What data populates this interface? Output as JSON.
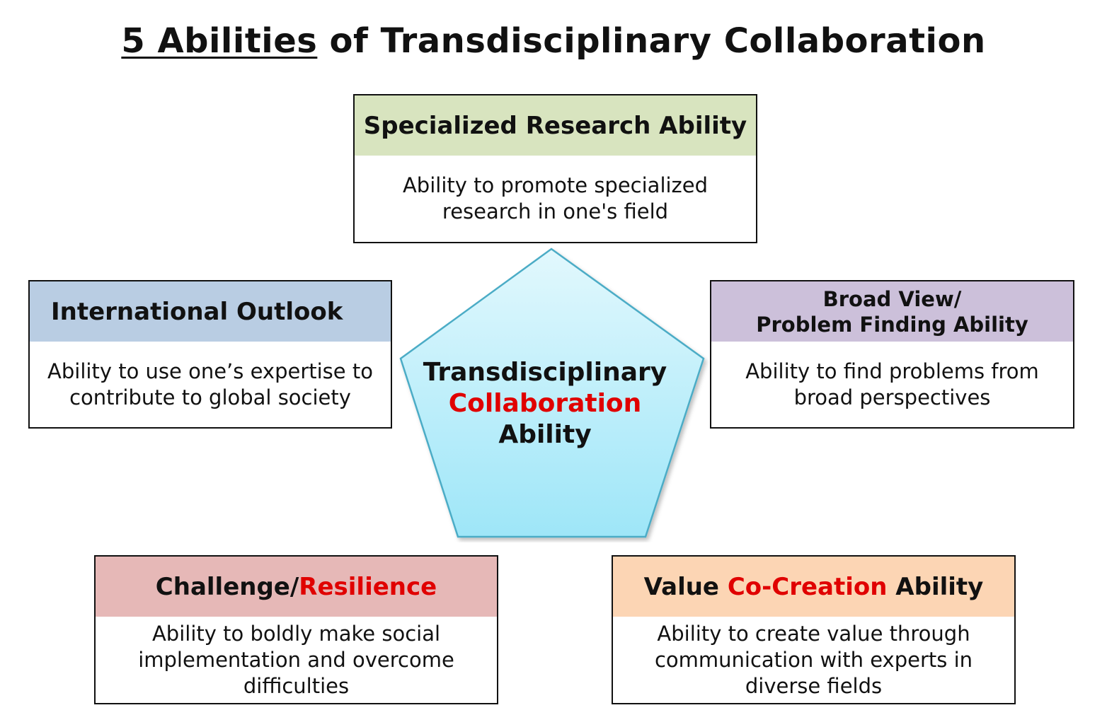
{
  "title": {
    "underlined": "5 Abilities",
    "rest": " of Transdisciplinary Collaboration"
  },
  "center": {
    "line1": "Transdisciplinary",
    "line2": "Collaboration",
    "line3": "Ability"
  },
  "boxes": {
    "specialized": {
      "heading": "Specialized Research Ability",
      "description": "Ability to promote specialized research in one's field"
    },
    "international": {
      "heading": "International Outlook",
      "description": "Ability to use one’s expertise to contribute to global  society"
    },
    "broad": {
      "heading_line1": "Broad View/",
      "heading_line2": "Problem Finding Ability",
      "description": "Ability to find problems from broad perspectives"
    },
    "challenge": {
      "heading_part1": "Challenge/",
      "heading_part2": "Resilience",
      "description": "Ability to boldly make social implementation and overcome difficulties"
    },
    "value": {
      "heading_part1": "Value ",
      "heading_part2": "Co-Creation",
      "heading_part3": " Ability",
      "description": "Ability to create value through communication with experts in diverse fields"
    }
  },
  "colors": {
    "specialized_header": "#d8e4bf",
    "international_header": "#b9cde3",
    "broad_header": "#ccc0da",
    "challenge_header": "#e6b8b7",
    "value_header": "#fcd5b4",
    "pentagon_top": "#e2f8fd",
    "pentagon_bottom": "#9ee6f8",
    "pentagon_stroke": "#4bacc6",
    "accent_red": "#e00000"
  }
}
